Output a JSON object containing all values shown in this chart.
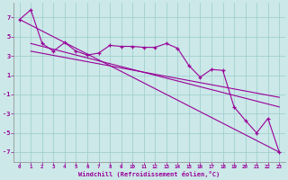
{
  "xlabel": "Windchill (Refroidissement éolien,°C)",
  "background_color": "#cce8e8",
  "line_color": "#990099",
  "grid_color": "#99cccc",
  "ylim": [
    -8,
    8.5
  ],
  "xlim": [
    -0.5,
    23.5
  ],
  "yticks": [
    -7,
    -5,
    -3,
    -1,
    1,
    3,
    5,
    7
  ],
  "xticks": [
    0,
    1,
    2,
    3,
    4,
    5,
    6,
    7,
    8,
    9,
    10,
    11,
    12,
    13,
    14,
    15,
    16,
    17,
    18,
    19,
    20,
    21,
    22,
    23
  ],
  "main_x": [
    0,
    1,
    2,
    3,
    4,
    5,
    6,
    7,
    8,
    9,
    10,
    11,
    12,
    13,
    14,
    15,
    16,
    17,
    18,
    19,
    20,
    21,
    22,
    23
  ],
  "main_y": [
    6.8,
    7.8,
    4.3,
    3.5,
    4.4,
    3.5,
    3.1,
    3.3,
    4.1,
    4.0,
    4.0,
    3.9,
    3.9,
    4.3,
    3.8,
    2.0,
    0.8,
    1.6,
    1.5,
    -2.3,
    -3.7,
    -5.0,
    -3.5,
    -7.0
  ],
  "trend1_x": [
    0,
    23
  ],
  "trend1_y": [
    6.8,
    -7.0
  ],
  "trend2_x": [
    1,
    23
  ],
  "trend2_y": [
    4.3,
    -2.3
  ],
  "trend3_x": [
    1,
    23
  ],
  "trend3_y": [
    3.5,
    -1.3
  ]
}
